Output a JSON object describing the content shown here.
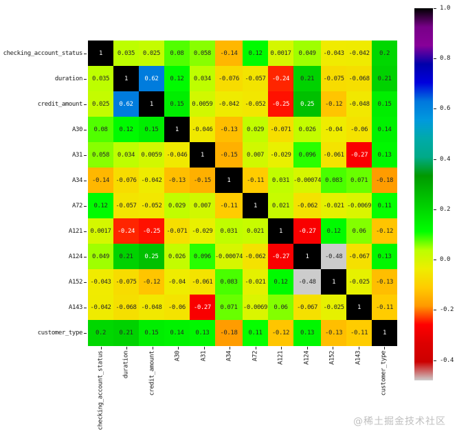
{
  "figure": {
    "watermark": "@稀土掘金技术社区"
  },
  "colors": {
    "background": "#ffffff",
    "annotation_dark": "#262626",
    "annotation_light": "#ffffff",
    "tick": "#1a1a1a",
    "watermark": "#bfbfbf"
  },
  "chart_data": {
    "type": "heatmap",
    "title": "",
    "xlabel": "",
    "ylabel": "",
    "grid": false,
    "annotated": true,
    "colormap": "nipy_spectral_r",
    "vmin": -0.48,
    "vmax": 1.0,
    "categories": [
      "checking_account_status",
      "duration",
      "credit_amount",
      "A30",
      "A31",
      "A34",
      "A72",
      "A121",
      "A124",
      "A152",
      "A143",
      "customer_type"
    ],
    "matrix": [
      [
        1,
        0.035,
        0.025,
        0.08,
        0.058,
        -0.14,
        0.12,
        0.0017,
        0.049,
        -0.043,
        -0.042,
        0.2
      ],
      [
        0.035,
        1,
        0.62,
        0.12,
        0.034,
        -0.076,
        -0.057,
        -0.24,
        0.21,
        -0.075,
        -0.068,
        0.21
      ],
      [
        0.025,
        0.62,
        1,
        0.15,
        0.0059,
        -0.042,
        -0.052,
        -0.25,
        0.25,
        -0.12,
        -0.048,
        0.15
      ],
      [
        0.08,
        0.12,
        0.15,
        1,
        -0.046,
        -0.13,
        0.029,
        -0.071,
        0.026,
        -0.04,
        -0.06,
        0.14
      ],
      [
        0.058,
        0.034,
        0.0059,
        -0.046,
        1,
        -0.15,
        0.007,
        -0.029,
        0.096,
        -0.061,
        -0.27,
        0.13
      ],
      [
        -0.14,
        -0.076,
        -0.042,
        -0.13,
        -0.15,
        1,
        -0.11,
        0.031,
        -0.00074,
        0.083,
        0.071,
        -0.18
      ],
      [
        0.12,
        -0.057,
        -0.052,
        0.029,
        0.007,
        -0.11,
        1,
        0.021,
        -0.062,
        -0.021,
        -0.0069,
        0.11
      ],
      [
        0.0017,
        -0.24,
        -0.25,
        -0.071,
        -0.029,
        0.031,
        0.021,
        1,
        -0.27,
        0.12,
        0.06,
        -0.12
      ],
      [
        0.049,
        0.21,
        0.25,
        0.026,
        0.096,
        -0.00074,
        -0.062,
        -0.27,
        1,
        -0.48,
        -0.067,
        0.13
      ],
      [
        -0.043,
        -0.075,
        -0.12,
        -0.04,
        -0.061,
        0.083,
        -0.021,
        0.12,
        -0.48,
        1,
        -0.025,
        -0.13
      ],
      [
        -0.042,
        -0.068,
        -0.048,
        -0.06,
        -0.27,
        0.071,
        -0.0069,
        0.06,
        -0.067,
        -0.025,
        1,
        -0.11
      ],
      [
        0.2,
        0.21,
        0.15,
        0.14,
        0.13,
        -0.18,
        0.11,
        -0.12,
        0.13,
        -0.13,
        -0.11,
        1
      ]
    ],
    "colorbar": {
      "position": "right",
      "tick_labels": [
        "1.0",
        "0.8",
        "0.6",
        "0.4",
        "0.2",
        "0.0",
        "-0.2",
        "-0.4"
      ]
    }
  }
}
